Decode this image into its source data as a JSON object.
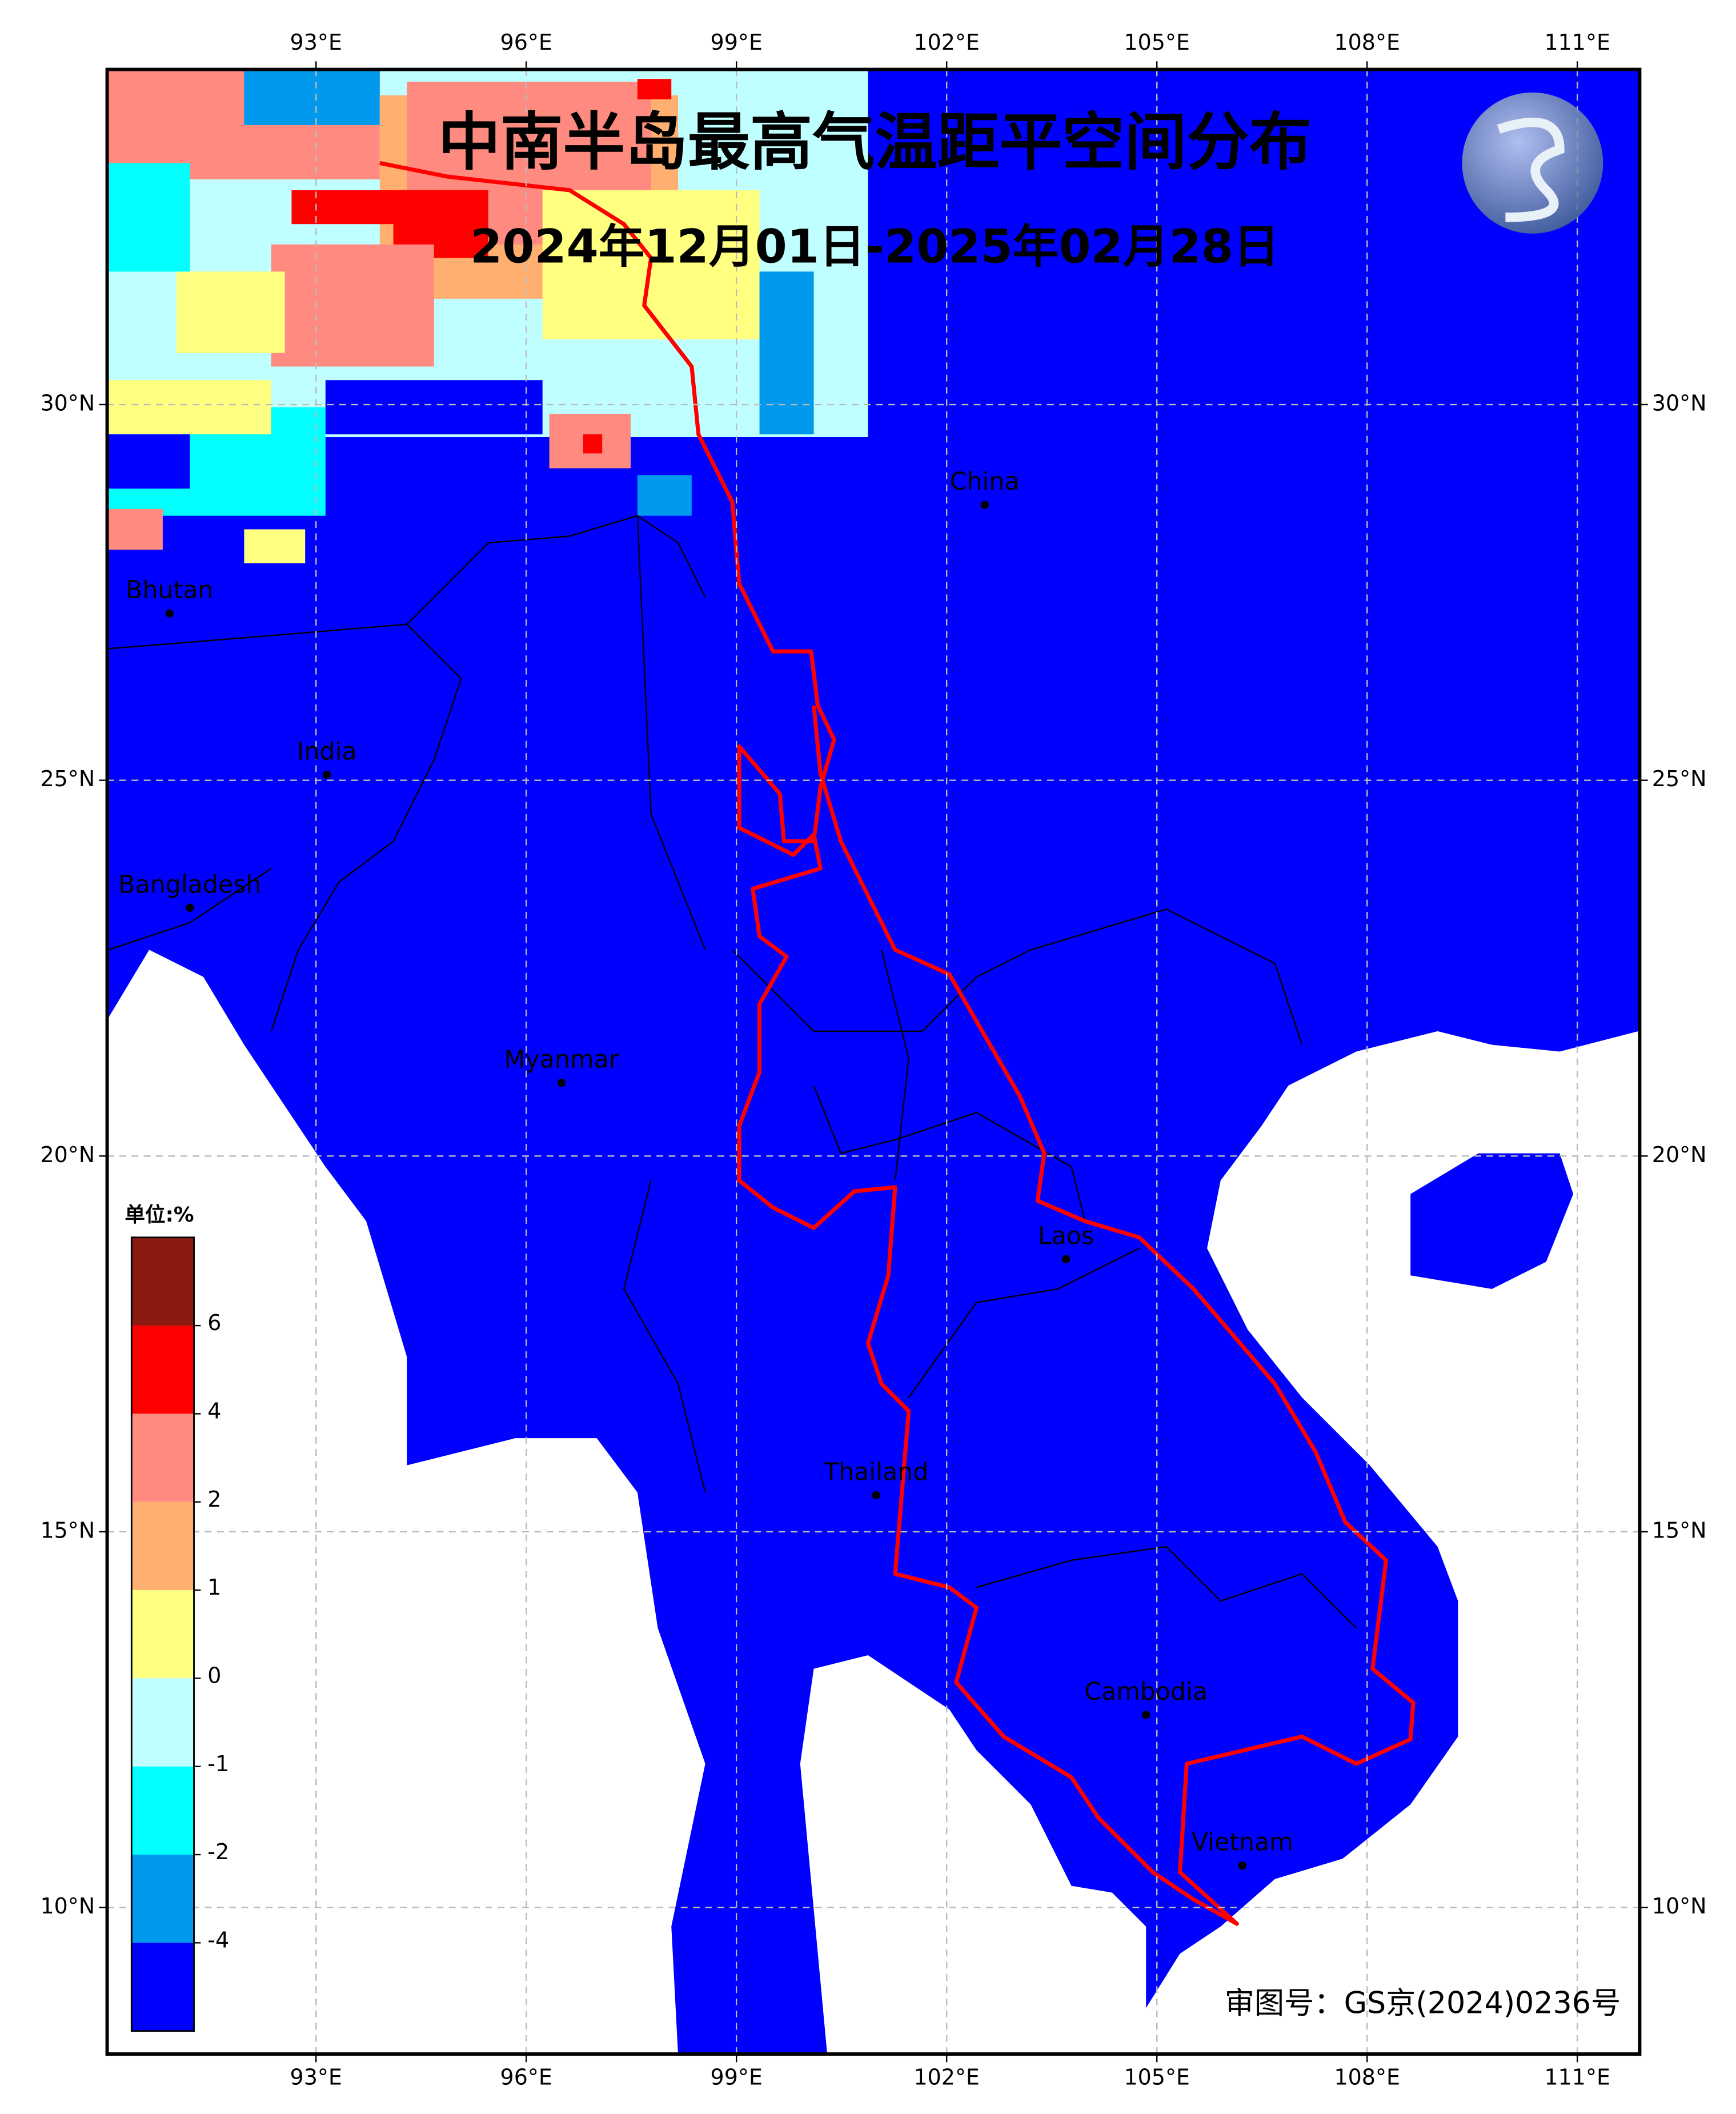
{
  "title": "中南半岛最高气温距平空间分布",
  "subtitle": "2024年12月01日-2025年02月28日",
  "map": {
    "grid": true,
    "xticks": [
      {
        "value": 93,
        "label": "93°E"
      },
      {
        "value": 96,
        "label": "96°E"
      },
      {
        "value": 99,
        "label": "99°E"
      },
      {
        "value": 102,
        "label": "102°E"
      },
      {
        "value": 105,
        "label": "105°E"
      },
      {
        "value": 108,
        "label": "108°E"
      },
      {
        "value": 111,
        "label": "111°E"
      }
    ],
    "yticks": [
      {
        "value": 10,
        "label": "10°N"
      },
      {
        "value": 15,
        "label": "15°N"
      },
      {
        "value": 20,
        "label": "20°N"
      },
      {
        "value": 25,
        "label": "25°N"
      },
      {
        "value": 30,
        "label": "30°N"
      }
    ],
    "places": [
      "Bhutan",
      "India",
      "Bangladesh",
      "Myanmar",
      "China",
      "Laos",
      "Thailand",
      "Cambodia",
      "Vietnam"
    ]
  },
  "colorbar": {
    "label": "单位:%",
    "ticks": [
      6,
      4,
      2,
      1,
      0,
      -1,
      -2,
      -4
    ],
    "colors": [
      "#8b1a10",
      "#ff0000",
      "#ff8a80",
      "#ffb070",
      "#ffff80",
      "#c0ffff",
      "#00ffff",
      "#0099ee",
      "#0000ff"
    ]
  },
  "approval": "审图号：GS京(2024)0236号"
}
